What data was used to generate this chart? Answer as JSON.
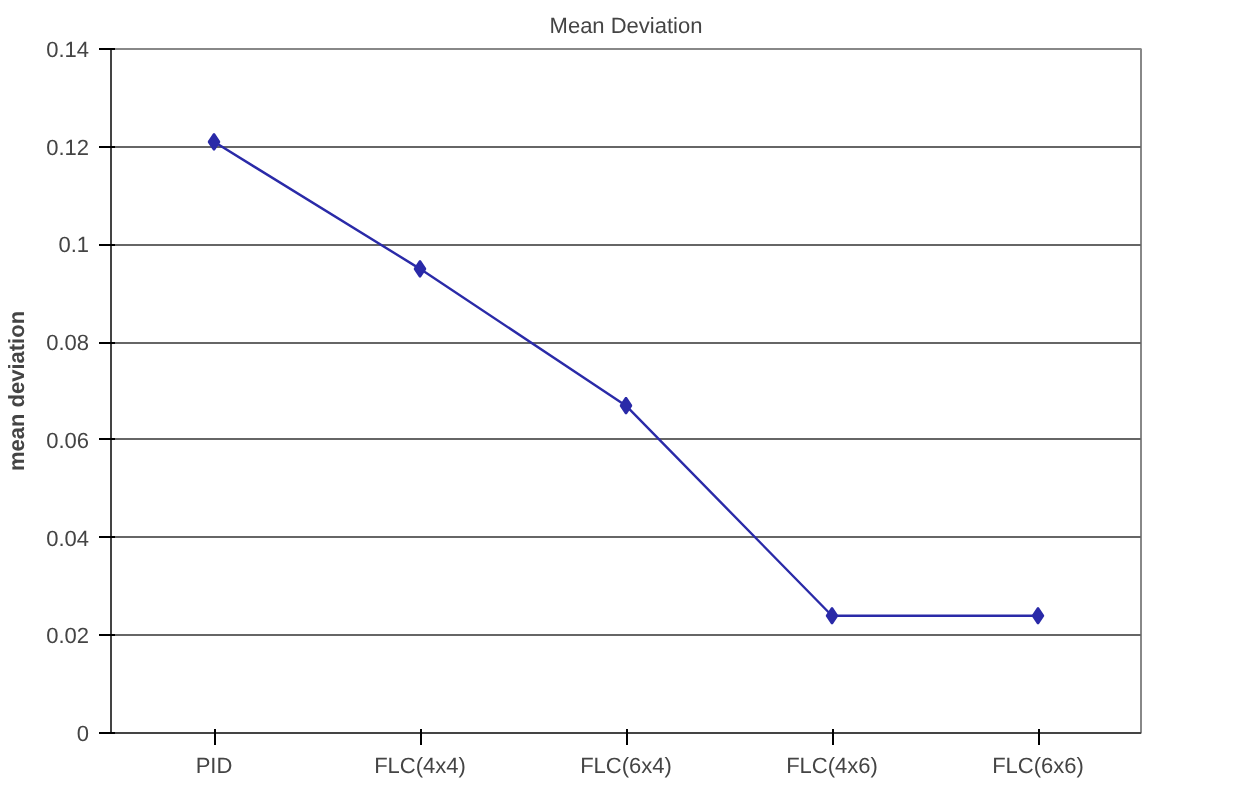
{
  "chart_data": {
    "type": "line",
    "title": "Mean Deviation",
    "ylabel": "mean deviation",
    "categories": [
      "PID",
      "FLC(4x4)",
      "FLC(6x4)",
      "FLC(4x6)",
      "FLC(6x6)"
    ],
    "series": [
      {
        "color": "#2a2aa8",
        "values": [
          0.121,
          0.095,
          0.067,
          0.024,
          0.024
        ]
      }
    ],
    "ylim": [
      0,
      0.14
    ],
    "yticks": [
      0,
      {
        "value": 0.02,
        "label": "0.02"
      },
      {
        "value": 0.04,
        "label": "0.04"
      },
      {
        "value": 0.06,
        "label": "0.06"
      },
      {
        "value": 0.08,
        "label": "0.08"
      },
      {
        "value": 0.1,
        "label": "0.1"
      },
      {
        "value": 0.12,
        "label": "0.12"
      },
      {
        "value": 0.14,
        "label": "0.14"
      }
    ],
    "grid": "y",
    "marker": "diamond",
    "line_style": "solid"
  }
}
